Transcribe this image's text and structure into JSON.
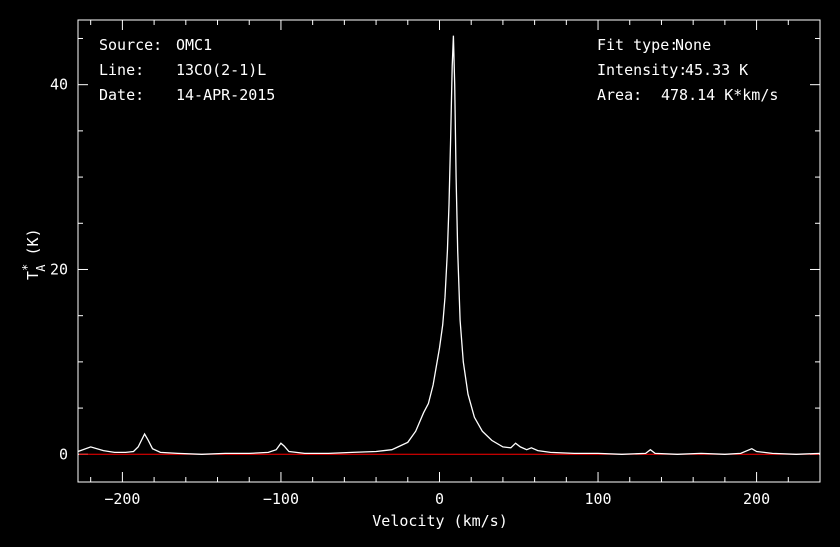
{
  "chart_data": {
    "type": "line",
    "xlabel": "Velocity (km/s)",
    "ylabel": {
      "main": "T",
      "sup": "*",
      "sub": "A",
      "unit": " (K)"
    },
    "xlim": [
      -228,
      240
    ],
    "ylim": [
      -3,
      47
    ],
    "x_ticks": [
      -200,
      -100,
      0,
      100,
      200
    ],
    "y_ticks": [
      0,
      20,
      40
    ],
    "grid": false,
    "colors": {
      "background": "#000000",
      "spectrum": "#ffffff",
      "baseline": "#ff0000",
      "axes": "#ffffff"
    },
    "baseline": {
      "y": 0
    },
    "info_left": [
      {
        "label": "Source:",
        "value": "OMC1"
      },
      {
        "label": "Line:",
        "value": "13CO(2-1)L"
      },
      {
        "label": "Date:",
        "value": "14-APR-2015"
      }
    ],
    "info_right": [
      {
        "label": "Fit type:",
        "value": "None"
      },
      {
        "label": "Intensity:",
        "value": "45.33 K"
      },
      {
        "label": "Area:",
        "value": "478.14 K*km/s"
      }
    ],
    "series": [
      {
        "values_xy": [
          [
            -228,
            0.3
          ],
          [
            -220,
            0.8
          ],
          [
            -212,
            0.4
          ],
          [
            -205,
            0.2
          ],
          [
            -198,
            0.2
          ],
          [
            -193,
            0.3
          ],
          [
            -190,
            0.8
          ],
          [
            -188,
            1.5
          ],
          [
            -186,
            2.2
          ],
          [
            -184,
            1.6
          ],
          [
            -181,
            0.6
          ],
          [
            -176,
            0.2
          ],
          [
            -165,
            0.1
          ],
          [
            -150,
            0.0
          ],
          [
            -135,
            0.1
          ],
          [
            -120,
            0.1
          ],
          [
            -108,
            0.2
          ],
          [
            -103,
            0.5
          ],
          [
            -100,
            1.2
          ],
          [
            -98,
            0.9
          ],
          [
            -95,
            0.3
          ],
          [
            -85,
            0.1
          ],
          [
            -70,
            0.1
          ],
          [
            -55,
            0.2
          ],
          [
            -40,
            0.3
          ],
          [
            -30,
            0.5
          ],
          [
            -25,
            0.9
          ],
          [
            -20,
            1.3
          ],
          [
            -15,
            2.5
          ],
          [
            -10,
            4.5
          ],
          [
            -7,
            5.5
          ],
          [
            -4,
            7.5
          ],
          [
            -2,
            9.5
          ],
          [
            0,
            11.5
          ],
          [
            2,
            14.0
          ],
          [
            3.5,
            17.0
          ],
          [
            5,
            22.0
          ],
          [
            6,
            27.0
          ],
          [
            7,
            34.0
          ],
          [
            8,
            42.0
          ],
          [
            8.8,
            45.3
          ],
          [
            9.6,
            40.0
          ],
          [
            10.5,
            30.0
          ],
          [
            11.5,
            22.0
          ],
          [
            13,
            14.5
          ],
          [
            15,
            10.0
          ],
          [
            18,
            6.5
          ],
          [
            22,
            4.0
          ],
          [
            27,
            2.5
          ],
          [
            33,
            1.5
          ],
          [
            40,
            0.8
          ],
          [
            45,
            0.7
          ],
          [
            48,
            1.2
          ],
          [
            51,
            0.8
          ],
          [
            55,
            0.5
          ],
          [
            58,
            0.7
          ],
          [
            62,
            0.4
          ],
          [
            70,
            0.2
          ],
          [
            85,
            0.1
          ],
          [
            100,
            0.1
          ],
          [
            115,
            0.0
          ],
          [
            130,
            0.1
          ],
          [
            133,
            0.5
          ],
          [
            136,
            0.1
          ],
          [
            150,
            0.0
          ],
          [
            165,
            0.1
          ],
          [
            180,
            0.0
          ],
          [
            190,
            0.1
          ],
          [
            197,
            0.6
          ],
          [
            200,
            0.3
          ],
          [
            210,
            0.1
          ],
          [
            225,
            0.0
          ],
          [
            240,
            0.1
          ]
        ]
      }
    ]
  }
}
